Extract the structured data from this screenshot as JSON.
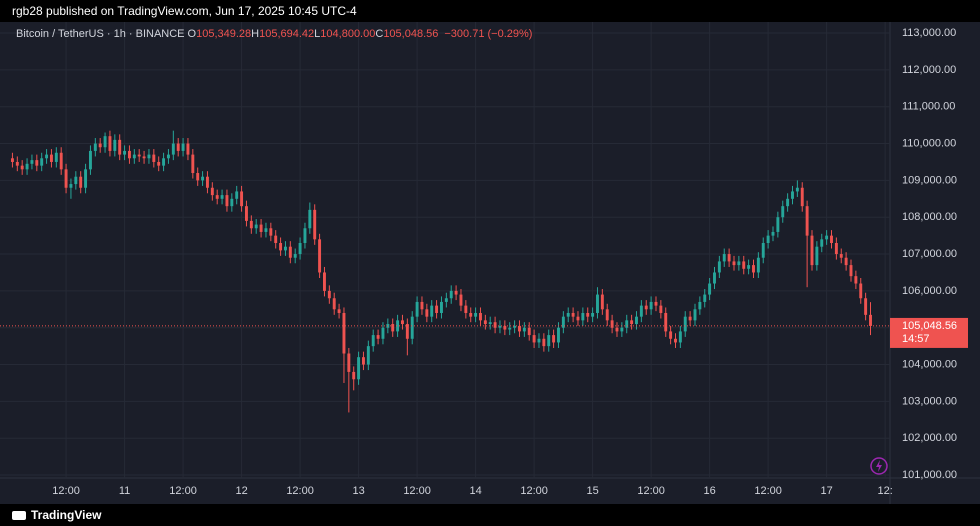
{
  "header": "rgb28 published on TradingView.com, Jun 17, 2025 10:45 UTC-4",
  "footer": "TradingView",
  "chart_data": {
    "type": "candlestick",
    "title": "Bitcoin / TetherUS · 1h · BINANCE",
    "ohlc_legend": [
      {
        "label": "O",
        "text": "105,349.28"
      },
      {
        "label": "H",
        "text": "105,694.42"
      },
      {
        "label": "L",
        "text": "104,800.00"
      },
      {
        "label": "C",
        "text": "105,048.56"
      }
    ],
    "change": "−300.71 (−0.29%)",
    "up_color": "#26a69a",
    "down_color": "#ef5350",
    "open": [
      109600,
      109500,
      109400,
      109300,
      109450,
      109550,
      109400,
      109600,
      109700,
      109500,
      109750,
      109300,
      108800,
      108900,
      109100,
      108800,
      109300,
      109800,
      110000,
      109900,
      110200,
      109800,
      110100,
      109700,
      109800,
      109600,
      109700,
      109650,
      109600,
      109700,
      109500,
      109400,
      109600,
      109700,
      110000,
      109800,
      110000,
      109700,
      109200,
      109000,
      109100,
      108800,
      108600,
      108500,
      108600,
      108300,
      108500,
      108700,
      108300,
      107900,
      107700,
      107800,
      107600,
      107700,
      107500,
      107300,
      107100,
      107200,
      106900,
      107000,
      107300,
      107700,
      108200,
      107400,
      106500,
      106000,
      105800,
      105500,
      105400,
      104300,
      103800,
      103600,
      104200,
      104000,
      104500,
      104800,
      104700,
      105000,
      105100,
      104900,
      105200,
      105100,
      104700,
      105300,
      105700,
      105500,
      105300,
      105600,
      105400,
      105700,
      105800,
      106000,
      105900,
      105600,
      105400,
      105300,
      105400,
      105200,
      105100,
      105150,
      105000,
      105050,
      104950,
      105000,
      105050,
      104900,
      105000,
      104800,
      104600,
      104700,
      104500,
      104800,
      104600,
      105000,
      105300,
      105400,
      105300,
      105200,
      105400,
      105300,
      105400,
      105900,
      105500,
      105200,
      105000,
      104900,
      105000,
      105200,
      105100,
      105300,
      105600,
      105500,
      105700,
      105600,
      105400,
      104900,
      104700,
      104600,
      104900,
      105300,
      105200,
      105500,
      105700,
      105900,
      106200,
      106500,
      106800,
      107000,
      106800,
      106700,
      106800,
      106600,
      106700,
      106500,
      106900,
      107300,
      107500,
      107600,
      108000,
      108300,
      108500,
      108700,
      108800,
      108300,
      107500,
      106700,
      107200,
      107400,
      107500,
      107300,
      107000,
      106900,
      106700,
      106400,
      106200,
      105800,
      105349.28
    ],
    "high": [
      109750,
      109650,
      109550,
      109600,
      109700,
      109700,
      109750,
      109850,
      109850,
      109900,
      109900,
      109450,
      109050,
      109250,
      109250,
      109450,
      109950,
      110150,
      110150,
      110300,
      110350,
      110250,
      110250,
      109950,
      109950,
      109850,
      109850,
      109800,
      109850,
      109850,
      109650,
      109750,
      109850,
      110350,
      110150,
      110150,
      110150,
      109850,
      109350,
      109250,
      109250,
      108950,
      108750,
      108750,
      108750,
      108650,
      108850,
      108850,
      108450,
      108050,
      107950,
      107950,
      107850,
      107850,
      107650,
      107450,
      107350,
      107350,
      107150,
      107450,
      107850,
      108400,
      108350,
      107550,
      106650,
      106150,
      105950,
      105650,
      105550,
      104450,
      103950,
      104350,
      104350,
      104650,
      104950,
      104950,
      105150,
      105250,
      105250,
      105350,
      105350,
      105250,
      105450,
      105850,
      105850,
      105650,
      105750,
      105750,
      105850,
      105950,
      106150,
      106150,
      106050,
      105750,
      105550,
      105550,
      105550,
      105350,
      105300,
      105300,
      105200,
      105200,
      105150,
      105200,
      105200,
      105150,
      105150,
      104950,
      104850,
      104850,
      104950,
      104950,
      105150,
      105450,
      105550,
      105550,
      105450,
      105550,
      105550,
      105550,
      106100,
      106050,
      105650,
      105350,
      105150,
      105150,
      105350,
      105350,
      105450,
      105750,
      105750,
      105850,
      105850,
      105750,
      105550,
      105050,
      104850,
      105050,
      105450,
      105450,
      105650,
      105850,
      106050,
      106350,
      106650,
      106950,
      107150,
      107150,
      106950,
      106950,
      106950,
      106850,
      106850,
      107050,
      107450,
      107650,
      107750,
      108150,
      108450,
      108650,
      108850,
      109000,
      108950,
      108450,
      107650,
      107350,
      107550,
      107650,
      107650,
      107450,
      107150,
      107050,
      106850,
      106550,
      106350,
      105950,
      105694.42
    ],
    "low": [
      109350,
      109250,
      109150,
      109150,
      109300,
      109250,
      109250,
      109450,
      109350,
      109350,
      109150,
      108650,
      108500,
      108750,
      108650,
      108650,
      109150,
      109650,
      109750,
      109750,
      109650,
      109650,
      109550,
      109550,
      109450,
      109450,
      109500,
      109450,
      109450,
      109350,
      109250,
      109250,
      109450,
      109550,
      109650,
      109650,
      109550,
      109050,
      108850,
      108850,
      108650,
      108450,
      108350,
      108350,
      108150,
      108150,
      108350,
      108150,
      107750,
      107550,
      107550,
      107450,
      107450,
      107350,
      107150,
      106950,
      106950,
      106750,
      106750,
      106850,
      107150,
      107550,
      107250,
      106350,
      105850,
      105650,
      105350,
      105250,
      103500,
      102700,
      103300,
      103450,
      103850,
      103850,
      104350,
      104550,
      104550,
      104850,
      104750,
      104750,
      104950,
      104250,
      104550,
      105150,
      105350,
      105150,
      105150,
      105250,
      105250,
      105550,
      105650,
      105750,
      105450,
      105250,
      105150,
      105150,
      105050,
      104950,
      104950,
      104850,
      104850,
      104800,
      104800,
      104850,
      104750,
      104750,
      104650,
      104450,
      104450,
      104350,
      104350,
      104450,
      104450,
      104850,
      105150,
      105150,
      105050,
      105050,
      105150,
      105150,
      105250,
      105350,
      105050,
      104850,
      104750,
      104750,
      104850,
      104950,
      104950,
      105150,
      105350,
      105350,
      105450,
      105250,
      104750,
      104550,
      104450,
      104450,
      104750,
      105050,
      105050,
      105350,
      105550,
      105750,
      106050,
      106350,
      106650,
      106650,
      106550,
      106550,
      106450,
      106450,
      106350,
      106350,
      106750,
      107150,
      107350,
      107450,
      107850,
      108150,
      108350,
      108550,
      108150,
      106100,
      106550,
      106550,
      107050,
      107250,
      107150,
      106850,
      106750,
      106550,
      106250,
      106050,
      105650,
      105200,
      104800
    ],
    "close": [
      109500,
      109400,
      109300,
      109450,
      109550,
      109400,
      109600,
      109700,
      109500,
      109750,
      109300,
      108800,
      108900,
      109100,
      108800,
      109300,
      109800,
      110000,
      109900,
      110200,
      109800,
      110100,
      109700,
      109800,
      109600,
      109700,
      109650,
      109600,
      109700,
      109500,
      109400,
      109600,
      109700,
      110000,
      109800,
      110000,
      109700,
      109200,
      109000,
      109100,
      108800,
      108600,
      108500,
      108600,
      108300,
      108500,
      108700,
      108300,
      107900,
      107700,
      107800,
      107600,
      107700,
      107500,
      107300,
      107100,
      107200,
      106900,
      107000,
      107300,
      107700,
      108200,
      107400,
      106500,
      106000,
      105800,
      105500,
      105400,
      104300,
      103800,
      103600,
      104200,
      104000,
      104500,
      104800,
      104700,
      105000,
      105100,
      104900,
      105200,
      105100,
      104700,
      105300,
      105700,
      105500,
      105300,
      105600,
      105400,
      105700,
      105800,
      106000,
      105900,
      105600,
      105400,
      105300,
      105400,
      105200,
      105100,
      105150,
      105000,
      105050,
      104950,
      105000,
      105050,
      104900,
      105000,
      104800,
      104600,
      104700,
      104500,
      104800,
      104600,
      105000,
      105300,
      105400,
      105300,
      105200,
      105400,
      105300,
      105400,
      105900,
      105500,
      105200,
      105000,
      104900,
      105000,
      105200,
      105100,
      105300,
      105600,
      105500,
      105700,
      105600,
      105400,
      104900,
      104700,
      104600,
      104900,
      105300,
      105200,
      105500,
      105700,
      105900,
      106200,
      106500,
      106800,
      107000,
      106800,
      106700,
      106800,
      106600,
      106700,
      106500,
      106900,
      107300,
      107500,
      107600,
      108000,
      108300,
      108500,
      108700,
      108800,
      108300,
      107500,
      106700,
      107200,
      107400,
      107500,
      107300,
      107000,
      106900,
      106700,
      106400,
      106200,
      105800,
      105349.28,
      105048.56
    ],
    "xlim": [
      -0.5,
      180
    ],
    "xticks": [
      {
        "value": 11,
        "label": "12:00"
      },
      {
        "value": 23,
        "label": "11"
      },
      {
        "value": 35,
        "label": "12:00"
      },
      {
        "value": 47,
        "label": "12"
      },
      {
        "value": 59,
        "label": "12:00"
      },
      {
        "value": 71,
        "label": "13"
      },
      {
        "value": 83,
        "label": "12:00"
      },
      {
        "value": 95,
        "label": "14"
      },
      {
        "value": 107,
        "label": "12:00"
      },
      {
        "value": 119,
        "label": "15"
      },
      {
        "value": 131,
        "label": "12:00"
      },
      {
        "value": 143,
        "label": "16"
      },
      {
        "value": 155,
        "label": "12:00"
      },
      {
        "value": 167,
        "label": "17"
      },
      {
        "value": 179,
        "label": "12:"
      }
    ],
    "ylim": [
      100920,
      113300
    ],
    "yticks": [
      {
        "value": 101000,
        "label": "101,000.00"
      },
      {
        "value": 102000,
        "label": "102,000.00"
      },
      {
        "value": 103000,
        "label": "103,000.00"
      },
      {
        "value": 104000,
        "label": "104,000.00"
      },
      {
        "value": 105000,
        "label": "105,000.00"
      },
      {
        "value": 106000,
        "label": "106,000.00"
      },
      {
        "value": 107000,
        "label": "107,000.00"
      },
      {
        "value": 108000,
        "label": "108,000.00"
      },
      {
        "value": 109000,
        "label": "109,000.00"
      },
      {
        "value": 110000,
        "label": "110,000.00"
      },
      {
        "value": 111000,
        "label": "111,000.00"
      },
      {
        "value": 112000,
        "label": "112,000.00"
      },
      {
        "value": 113000,
        "label": "113,000.00"
      }
    ],
    "last_price": {
      "value": 105048.56,
      "label": "105,048.56"
    },
    "countdown": "14:57",
    "grid": true
  }
}
